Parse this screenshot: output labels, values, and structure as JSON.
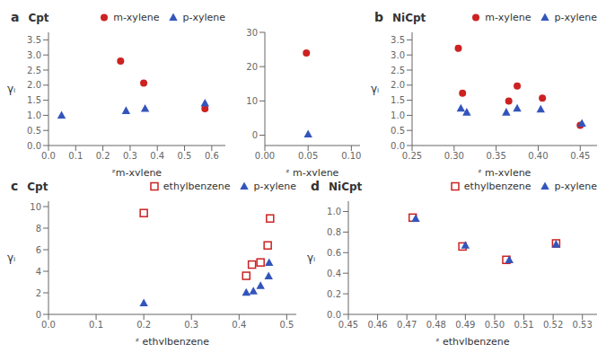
{
  "chart_data": [
    {
      "type": "scatter",
      "annotations": [
        "a"
      ],
      "title": "Cpt",
      "xlabel": "ᶻm-xylene",
      "ylabel": "γᵢ",
      "xlim": [
        0,
        0.65
      ],
      "ylim": [
        0,
        3.75
      ],
      "xticks": [
        {
          "value": 0,
          "label": "0.0"
        },
        0.1,
        0.2,
        0.3,
        0.4,
        0.5,
        0.6
      ],
      "yticks": [
        {
          "value": 0,
          "label": "0.0"
        },
        0.5,
        {
          "value": 1.0,
          "label": "1.0"
        },
        1.5,
        {
          "value": 2.0,
          "label": "2.0"
        },
        2.5,
        {
          "value": 3.0,
          "label": "3.0"
        },
        3.5
      ],
      "legend": "upper right",
      "series": [
        {
          "name": "m-xylene",
          "color": "#cc2222",
          "marker": "circle",
          "x": [
            0.265,
            0.35,
            0.575
          ],
          "values": [
            2.8,
            2.07,
            1.22
          ]
        },
        {
          "name": "p-xylene",
          "color": "#3355bb",
          "marker": "triangle",
          "x": [
            0.048,
            0.285,
            0.355,
            0.575
          ],
          "values": [
            1.0,
            1.15,
            1.22,
            1.4
          ]
        }
      ]
    },
    {
      "type": "scatter",
      "xlabel": "ᶻ m-xylene",
      "xlim": [
        0,
        0.11
      ],
      "ylim": [
        -3,
        30
      ],
      "xticks": [
        {
          "value": 0,
          "label": "0.00"
        },
        0.05,
        {
          "value": 0.1,
          "label": "0.10"
        }
      ],
      "yticks": [
        0,
        10,
        20,
        30
      ],
      "series": [
        {
          "color": "#cc2222",
          "marker": "circle",
          "x": [
            0.048
          ],
          "values": [
            24.0
          ]
        },
        {
          "color": "#3355bb",
          "marker": "triangle",
          "x": [
            0.05
          ],
          "values": [
            0.3
          ]
        }
      ]
    },
    {
      "type": "scatter",
      "annotations": [
        "b"
      ],
      "title": "NiCpt",
      "xlabel": "ᶻ m-xylene",
      "ylabel": "γᵢ",
      "xlim": [
        0.25,
        0.47
      ],
      "ylim": [
        0,
        3.75
      ],
      "xticks": [
        0.25,
        {
          "value": 0.3,
          "label": "0.30"
        },
        0.35,
        {
          "value": 0.4,
          "label": "0.40"
        },
        0.45
      ],
      "yticks": [
        {
          "value": 0,
          "label": "0.0"
        },
        0.5,
        {
          "value": 1.0,
          "label": "1.0"
        },
        1.5,
        {
          "value": 2.0,
          "label": "2.0"
        },
        2.5,
        {
          "value": 3.0,
          "label": "3.0"
        },
        3.5
      ],
      "legend": "upper right",
      "series": [
        {
          "name": "m-xylene",
          "color": "#cc2222",
          "marker": "circle",
          "x": [
            0.305,
            0.31,
            0.365,
            0.375,
            0.405,
            0.45
          ],
          "values": [
            3.22,
            1.73,
            1.47,
            1.97,
            1.57,
            0.67
          ]
        },
        {
          "name": "p-xylene",
          "color": "#3355bb",
          "marker": "triangle",
          "x": [
            0.308,
            0.315,
            0.362,
            0.375,
            0.403,
            0.452
          ],
          "values": [
            1.23,
            1.1,
            1.1,
            1.23,
            1.2,
            0.73
          ]
        }
      ]
    },
    {
      "type": "scatter",
      "annotations": [
        "c"
      ],
      "title": "Cpt",
      "xlabel": "ᶻ ethylbenzene",
      "ylabel": "γᵢ",
      "xlim": [
        0,
        0.52
      ],
      "ylim": [
        0,
        10.5
      ],
      "xticks": [
        {
          "value": 0,
          "label": "0.0"
        },
        0.1,
        0.2,
        0.3,
        0.4,
        0.5
      ],
      "yticks": [
        0,
        2,
        4,
        6,
        8,
        10
      ],
      "legend": "upper right",
      "series": [
        {
          "name": "ethylbenzene",
          "color": "#cc2222",
          "marker": "open_square",
          "x": [
            0.2,
            0.415,
            0.427,
            0.445,
            0.46,
            0.465
          ],
          "values": [
            9.4,
            3.58,
            4.62,
            4.82,
            6.4,
            8.9
          ]
        },
        {
          "name": "p-xylene",
          "color": "#3355bb",
          "marker": "triangle",
          "x": [
            0.2,
            0.415,
            0.43,
            0.445,
            0.462,
            0.463
          ],
          "values": [
            1.05,
            2.02,
            2.15,
            2.65,
            3.55,
            4.8
          ]
        }
      ]
    },
    {
      "type": "scatter",
      "annotations": [
        "d"
      ],
      "title": "NiCpt",
      "xlabel": "ᶻ ethylbenzene",
      "ylabel": "γᵢ",
      "xlim": [
        0.45,
        0.535
      ],
      "ylim": [
        0,
        1.1
      ],
      "xticks": [
        0.45,
        0.46,
        0.47,
        0.48,
        0.49,
        {
          "value": 0.5,
          "label": "0.50"
        },
        0.51,
        0.52,
        0.53
      ],
      "yticks": [
        {
          "value": 0,
          "label": "0.0"
        },
        0.2,
        0.4,
        0.6,
        0.8,
        {
          "value": 1.0,
          "label": "1.0"
        }
      ],
      "legend": "upper right",
      "series": [
        {
          "name": "ethylbenzene",
          "color": "#cc2222",
          "marker": "open_square",
          "x": [
            0.472,
            0.489,
            0.504,
            0.521
          ],
          "values": [
            0.94,
            0.66,
            0.53,
            0.69
          ]
        },
        {
          "name": "p-xylene",
          "color": "#3355bb",
          "marker": "triangle",
          "x": [
            0.473,
            0.49,
            0.505,
            0.521
          ],
          "values": [
            0.93,
            0.67,
            0.53,
            0.68
          ]
        }
      ]
    }
  ]
}
